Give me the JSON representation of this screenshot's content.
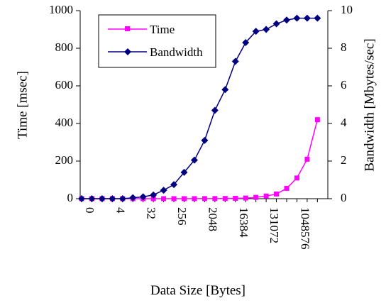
{
  "chart_data": {
    "type": "line",
    "xlabel": "Data Size [Bytes]",
    "ylabel_left": "Time [msec]",
    "ylabel_right": "Bandwidth [Mbytes/sec]",
    "x_tick_labels": [
      "0",
      "4",
      "32",
      "256",
      "2048",
      "16384",
      "131072",
      "1048576"
    ],
    "x": [
      0,
      1,
      2,
      4,
      8,
      16,
      32,
      64,
      128,
      256,
      512,
      1024,
      2048,
      4096,
      8192,
      16384,
      32768,
      65536,
      131072,
      262144,
      524288,
      1048576,
      2097152,
      4194304
    ],
    "left_axis": {
      "min": 0,
      "max": 1000,
      "step": 200,
      "ticks": [
        "0",
        "200",
        "400",
        "600",
        "800",
        "1000"
      ]
    },
    "right_axis": {
      "min": 0,
      "max": 10,
      "step": 2,
      "ticks": [
        "0",
        "2",
        "4",
        "6",
        "8",
        "10"
      ]
    },
    "grid": false,
    "legend_position": "top-left",
    "series": [
      {
        "name": "Time",
        "axis": "left",
        "color": "#ff00ff",
        "marker": "square",
        "values": [
          0.1,
          0.1,
          0.1,
          0.1,
          0.1,
          0.1,
          0.1,
          0.1,
          0.1,
          0.1,
          0.1,
          0.2,
          0.3,
          0.5,
          1,
          2,
          3.5,
          7,
          14,
          25,
          55,
          110,
          210,
          420
        ]
      },
      {
        "name": "Bandwidth",
        "axis": "right",
        "color": "#000080",
        "marker": "diamond",
        "values": [
          0.0,
          0.0,
          0.0,
          0.0,
          0.0,
          0.05,
          0.1,
          0.2,
          0.45,
          0.75,
          1.4,
          2.05,
          3.1,
          4.7,
          5.8,
          7.3,
          8.3,
          8.9,
          9.0,
          9.3,
          9.5,
          9.6,
          9.6,
          9.6
        ]
      }
    ]
  }
}
